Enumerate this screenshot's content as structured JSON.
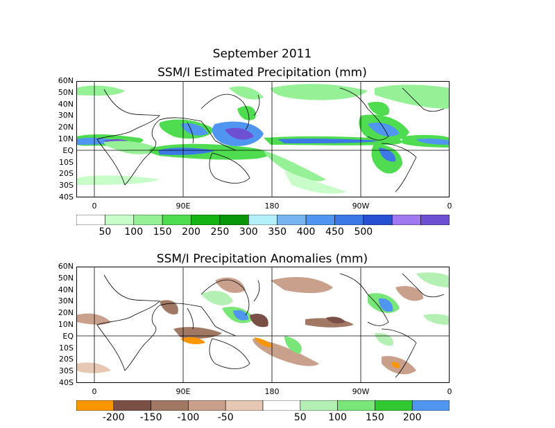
{
  "title": "September 2011",
  "map1": {
    "subtitle": "SSM/I Estimated Precipitation (mm)",
    "lat_labels": [
      "60N",
      "50N",
      "40N",
      "30N",
      "20N",
      "10N",
      "EQ",
      "10S",
      "20S",
      "30S",
      "40S"
    ],
    "lon_labels": [
      "0",
      "90E",
      "180",
      "90W",
      "0"
    ],
    "colorbar_colors": [
      "#ffffff",
      "#c8fcc8",
      "#96f096",
      "#50dc50",
      "#14b414",
      "#0a960a",
      "#b4f0fa",
      "#78b4f0",
      "#5096f0",
      "#3c78e6",
      "#2850d2",
      "#a078f0",
      "#6e50d2"
    ],
    "colorbar_labels": [
      "50",
      "100",
      "150",
      "200",
      "250",
      "300",
      "350",
      "400",
      "450",
      "500"
    ]
  },
  "map2": {
    "subtitle": "SSM/I Precipitation Anomalies (mm)",
    "lat_labels": [
      "60N",
      "50N",
      "40N",
      "30N",
      "20N",
      "10N",
      "EQ",
      "10S",
      "20S",
      "30S",
      "40S"
    ],
    "lon_labels": [
      "0",
      "90E",
      "180",
      "90W",
      "0"
    ],
    "colorbar_colors": [
      "#fa9600",
      "#7a5046",
      "#a07864",
      "#c8a08c",
      "#e6c8b4",
      "#ffffff",
      "#b4f0b4",
      "#78e678",
      "#32c832",
      "#5096f0"
    ],
    "colorbar_labels": [
      "-200",
      "-150",
      "-100",
      "-50",
      "50",
      "100",
      "150",
      "200"
    ]
  },
  "colors": {
    "coast": "#000000",
    "grid": "#000000"
  }
}
